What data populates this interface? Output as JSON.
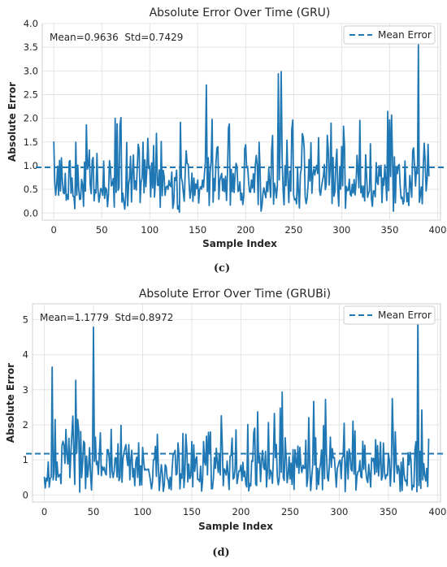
{
  "chart_data": [
    {
      "type": "line",
      "title": "Absolute Error Over Time (GRU)",
      "xlabel": "Sample Index",
      "ylabel": "Absolute Error",
      "xlim": [
        -12,
        403
      ],
      "ylim": [
        -0.15,
        4.0
      ],
      "xticks": [
        0,
        50,
        100,
        150,
        200,
        250,
        300,
        350,
        400
      ],
      "yticks": [
        0.0,
        0.5,
        1.0,
        1.5,
        2.0,
        2.5,
        3.0,
        3.5,
        4.0
      ],
      "xtick_labels": [
        "0",
        "50",
        "100",
        "150",
        "200",
        "250",
        "300",
        "350",
        "400"
      ],
      "ytick_labels": [
        "0.0",
        "0.5",
        "1.0",
        "1.5",
        "2.0",
        "2.5",
        "3.0",
        "3.5",
        "4.0"
      ],
      "stats_text": "Mean=0.9636  Std=0.7429",
      "mean": 0.9636,
      "std": 0.7429,
      "legend": [
        "Mean Error"
      ],
      "legend_position": "top-right",
      "grid": true,
      "caption": "(c)",
      "line_color": "#1f77b4",
      "n_samples": 392,
      "max_value": 3.55
    },
    {
      "type": "line",
      "title": "Absolute Error Over Time (GRUBi)",
      "xlabel": "Sample Index",
      "ylabel": "Absolute Error",
      "xlim": [
        -12,
        403
      ],
      "ylim": [
        -0.2,
        5.45
      ],
      "xticks": [
        0,
        50,
        100,
        150,
        200,
        250,
        300,
        350,
        400
      ],
      "yticks": [
        0,
        1,
        2,
        3,
        4,
        5
      ],
      "xtick_labels": [
        "0",
        "50",
        "100",
        "150",
        "200",
        "250",
        "300",
        "350",
        "400"
      ],
      "ytick_labels": [
        "0",
        "1",
        "2",
        "3",
        "4",
        "5"
      ],
      "stats_text": "Mean=1.1779  Std=0.8972",
      "mean": 1.1779,
      "std": 0.8972,
      "legend": [
        "Mean Error"
      ],
      "legend_position": "top-right",
      "grid": true,
      "caption": "(d)",
      "line_color": "#1f77b4",
      "n_samples": 392,
      "max_value": 5.2
    }
  ]
}
